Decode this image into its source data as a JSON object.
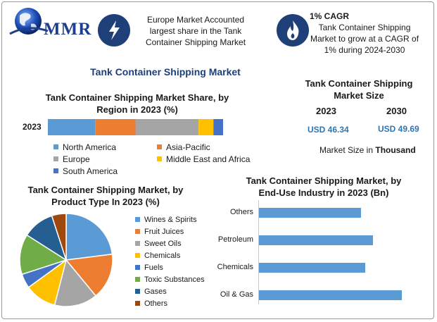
{
  "header": {
    "logo_text": "MMR",
    "callout_region": "Europe Market Accounted largest share in the Tank Container Shipping Market",
    "cagr_title": "1% CAGR",
    "cagr_text": "Tank Container Shipping Market to grow at a CAGR of 1% during 2024-2030",
    "icon_left": "lightning-bolt-icon",
    "icon_right": "flame-icon"
  },
  "main_title": "Tank Container Shipping Market",
  "market_size": {
    "title": "Tank Container Shipping Market Size",
    "years": [
      "2023",
      "2030"
    ],
    "values": [
      "USD 46.34",
      "USD 49.69"
    ],
    "note_prefix": "Market Size in ",
    "note_unit": "Thousand"
  },
  "colors": {
    "north_america": "#5b9bd5",
    "asia_pacific": "#ed7d31",
    "europe": "#a5a5a5",
    "middle_east_africa": "#ffc000",
    "south_america": "#4472c4",
    "accent": "#1e3f78"
  },
  "chart_data": [
    {
      "type": "bar",
      "orientation": "horizontal-stacked",
      "title": "Tank Container Shipping Market Share, by Region in 2023 (%)",
      "categories": [
        "2023"
      ],
      "series": [
        {
          "name": "North America",
          "values": [
            27
          ],
          "color": "#5b9bd5"
        },
        {
          "name": "Asia-Pacific",
          "values": [
            23
          ],
          "color": "#ed7d31"
        },
        {
          "name": "Europe",
          "values": [
            36
          ],
          "color": "#a5a5a5"
        },
        {
          "name": "Middle East and Africa",
          "values": [
            8.5
          ],
          "color": "#ffc000"
        },
        {
          "name": "South America",
          "values": [
            5.5
          ],
          "color": "#4472c4"
        }
      ],
      "legend": "bottom"
    },
    {
      "type": "pie",
      "title": "Tank Container Shipping Market, by Product Type In 2023 (%)",
      "slices": [
        {
          "name": "Wines & Spirits",
          "value": 23,
          "color": "#5b9bd5"
        },
        {
          "name": "Fruit Juices",
          "value": 16,
          "color": "#ed7d31"
        },
        {
          "name": "Sweet Oils",
          "value": 15,
          "color": "#a5a5a5"
        },
        {
          "name": "Chemicals",
          "value": 11,
          "color": "#ffc000"
        },
        {
          "name": "Fuels",
          "value": 5,
          "color": "#4472c4"
        },
        {
          "name": "Toxic Substances",
          "value": 14,
          "color": "#70ad47"
        },
        {
          "name": "Gases",
          "value": 11,
          "color": "#255e91"
        },
        {
          "name": "Others",
          "value": 5,
          "color": "#9e480e"
        }
      ],
      "legend": "right"
    },
    {
      "type": "bar",
      "orientation": "horizontal",
      "title": "Tank Container Shipping Market, by End-Use Industry in 2023 (Bn)",
      "categories": [
        "Others",
        "Petroleum",
        "Chemicals",
        "Oil & Gas"
      ],
      "values": [
        2.5,
        2.8,
        2.6,
        3.5
      ],
      "xlim": [
        0,
        4
      ],
      "color": "#5b9bd5"
    }
  ]
}
